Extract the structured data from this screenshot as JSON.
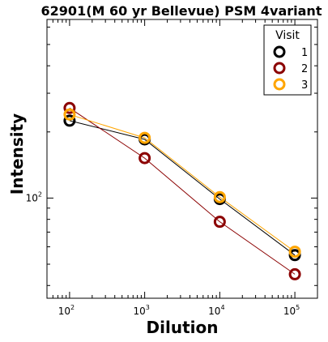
{
  "chart_data": {
    "type": "line",
    "title": "62901(M 60 yr Bellevue) PSM 4variant",
    "xlabel": "Dilution",
    "ylabel": "Intensity",
    "xscale": "log",
    "yscale": "log",
    "xlim": [
      50,
      200000
    ],
    "ylim": [
      35,
      650
    ],
    "x": [
      100,
      1000,
      10000,
      100000
    ],
    "x_tick_labels": [
      {
        "base": "10",
        "exp": "2"
      },
      {
        "base": "10",
        "exp": "3"
      },
      {
        "base": "10",
        "exp": "4"
      },
      {
        "base": "10",
        "exp": "5"
      }
    ],
    "y_tick_labels": [
      {
        "value": 100,
        "base": "10",
        "exp": "2"
      }
    ],
    "legend": {
      "title": "Visit",
      "placement": "upper-right"
    },
    "series": [
      {
        "name": "1",
        "color": "#000000",
        "values": [
          225,
          185,
          99,
          55
        ]
      },
      {
        "name": "2",
        "color": "#8b0000",
        "values": [
          257,
          152,
          78,
          45
        ]
      },
      {
        "name": "3",
        "color": "#ffa500",
        "values": [
          240,
          188,
          101,
          57
        ]
      }
    ],
    "grid": false
  }
}
